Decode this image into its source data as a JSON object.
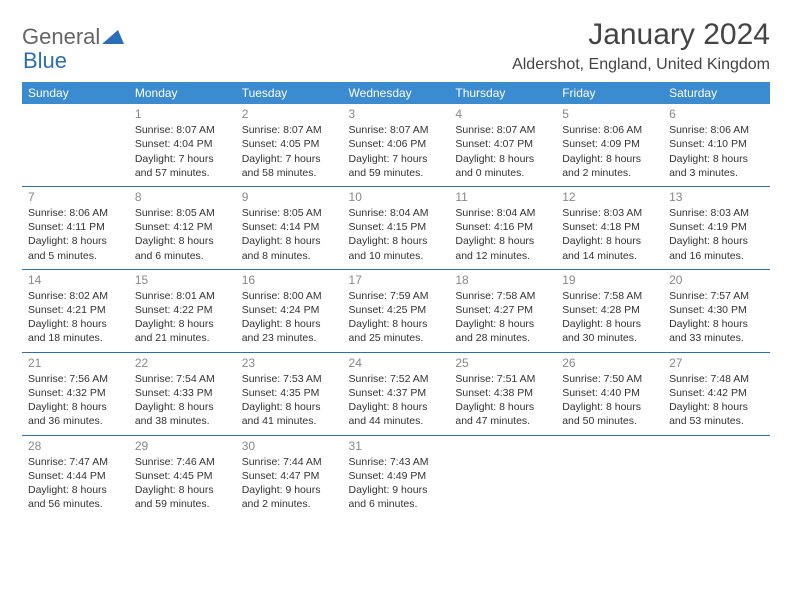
{
  "logo": {
    "part1": "General",
    "part2": "Blue"
  },
  "title": "January 2024",
  "location": "Aldershot, England, United Kingdom",
  "colors": {
    "header_bg": "#3b8bd1",
    "header_text": "#ffffff",
    "border": "#2a6fb5",
    "text": "#333333",
    "daynum": "#888888",
    "logo_gray": "#666666",
    "logo_blue": "#2a6fb5"
  },
  "weekdays": [
    "Sunday",
    "Monday",
    "Tuesday",
    "Wednesday",
    "Thursday",
    "Friday",
    "Saturday"
  ],
  "weeks": [
    [
      null,
      {
        "n": "1",
        "sr": "8:07 AM",
        "ss": "4:04 PM",
        "dl": "7 hours and 57 minutes."
      },
      {
        "n": "2",
        "sr": "8:07 AM",
        "ss": "4:05 PM",
        "dl": "7 hours and 58 minutes."
      },
      {
        "n": "3",
        "sr": "8:07 AM",
        "ss": "4:06 PM",
        "dl": "7 hours and 59 minutes."
      },
      {
        "n": "4",
        "sr": "8:07 AM",
        "ss": "4:07 PM",
        "dl": "8 hours and 0 minutes."
      },
      {
        "n": "5",
        "sr": "8:06 AM",
        "ss": "4:09 PM",
        "dl": "8 hours and 2 minutes."
      },
      {
        "n": "6",
        "sr": "8:06 AM",
        "ss": "4:10 PM",
        "dl": "8 hours and 3 minutes."
      }
    ],
    [
      {
        "n": "7",
        "sr": "8:06 AM",
        "ss": "4:11 PM",
        "dl": "8 hours and 5 minutes."
      },
      {
        "n": "8",
        "sr": "8:05 AM",
        "ss": "4:12 PM",
        "dl": "8 hours and 6 minutes."
      },
      {
        "n": "9",
        "sr": "8:05 AM",
        "ss": "4:14 PM",
        "dl": "8 hours and 8 minutes."
      },
      {
        "n": "10",
        "sr": "8:04 AM",
        "ss": "4:15 PM",
        "dl": "8 hours and 10 minutes."
      },
      {
        "n": "11",
        "sr": "8:04 AM",
        "ss": "4:16 PM",
        "dl": "8 hours and 12 minutes."
      },
      {
        "n": "12",
        "sr": "8:03 AM",
        "ss": "4:18 PM",
        "dl": "8 hours and 14 minutes."
      },
      {
        "n": "13",
        "sr": "8:03 AM",
        "ss": "4:19 PM",
        "dl": "8 hours and 16 minutes."
      }
    ],
    [
      {
        "n": "14",
        "sr": "8:02 AM",
        "ss": "4:21 PM",
        "dl": "8 hours and 18 minutes."
      },
      {
        "n": "15",
        "sr": "8:01 AM",
        "ss": "4:22 PM",
        "dl": "8 hours and 21 minutes."
      },
      {
        "n": "16",
        "sr": "8:00 AM",
        "ss": "4:24 PM",
        "dl": "8 hours and 23 minutes."
      },
      {
        "n": "17",
        "sr": "7:59 AM",
        "ss": "4:25 PM",
        "dl": "8 hours and 25 minutes."
      },
      {
        "n": "18",
        "sr": "7:58 AM",
        "ss": "4:27 PM",
        "dl": "8 hours and 28 minutes."
      },
      {
        "n": "19",
        "sr": "7:58 AM",
        "ss": "4:28 PM",
        "dl": "8 hours and 30 minutes."
      },
      {
        "n": "20",
        "sr": "7:57 AM",
        "ss": "4:30 PM",
        "dl": "8 hours and 33 minutes."
      }
    ],
    [
      {
        "n": "21",
        "sr": "7:56 AM",
        "ss": "4:32 PM",
        "dl": "8 hours and 36 minutes."
      },
      {
        "n": "22",
        "sr": "7:54 AM",
        "ss": "4:33 PM",
        "dl": "8 hours and 38 minutes."
      },
      {
        "n": "23",
        "sr": "7:53 AM",
        "ss": "4:35 PM",
        "dl": "8 hours and 41 minutes."
      },
      {
        "n": "24",
        "sr": "7:52 AM",
        "ss": "4:37 PM",
        "dl": "8 hours and 44 minutes."
      },
      {
        "n": "25",
        "sr": "7:51 AM",
        "ss": "4:38 PM",
        "dl": "8 hours and 47 minutes."
      },
      {
        "n": "26",
        "sr": "7:50 AM",
        "ss": "4:40 PM",
        "dl": "8 hours and 50 minutes."
      },
      {
        "n": "27",
        "sr": "7:48 AM",
        "ss": "4:42 PM",
        "dl": "8 hours and 53 minutes."
      }
    ],
    [
      {
        "n": "28",
        "sr": "7:47 AM",
        "ss": "4:44 PM",
        "dl": "8 hours and 56 minutes."
      },
      {
        "n": "29",
        "sr": "7:46 AM",
        "ss": "4:45 PM",
        "dl": "8 hours and 59 minutes."
      },
      {
        "n": "30",
        "sr": "7:44 AM",
        "ss": "4:47 PM",
        "dl": "9 hours and 2 minutes."
      },
      {
        "n": "31",
        "sr": "7:43 AM",
        "ss": "4:49 PM",
        "dl": "9 hours and 6 minutes."
      },
      null,
      null,
      null
    ]
  ],
  "labels": {
    "sunrise": "Sunrise:",
    "sunset": "Sunset:",
    "daylight": "Daylight:"
  }
}
